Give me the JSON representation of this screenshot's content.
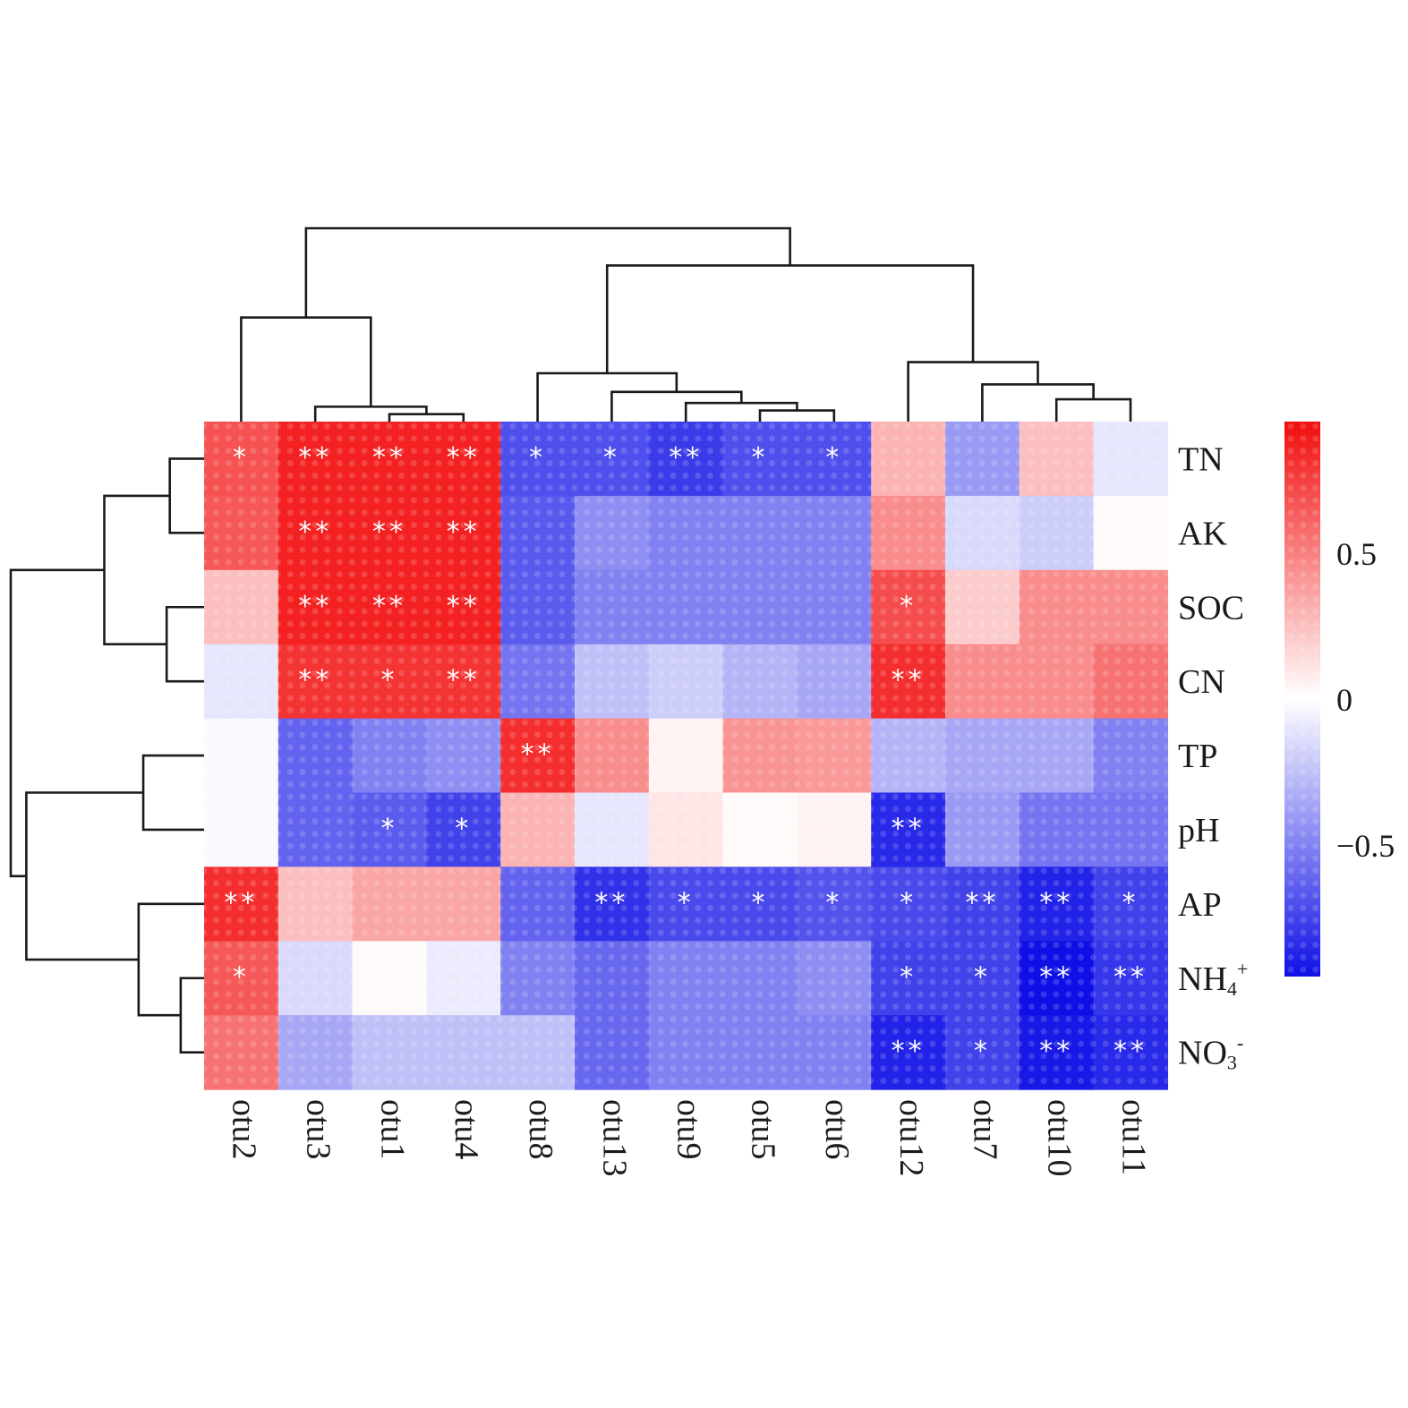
{
  "chart_data": {
    "type": "heatmap",
    "title": "",
    "xlabel": "",
    "ylabel": "",
    "columns": [
      "otu2",
      "otu3",
      "otu1",
      "otu4",
      "otu8",
      "otu13",
      "otu9",
      "otu5",
      "otu6",
      "otu12",
      "otu7",
      "otu10",
      "otu11"
    ],
    "rows": [
      "TN",
      "AK",
      "SOC",
      "CN",
      "TP",
      "pH",
      "AP",
      "NH4+",
      "NO3-"
    ],
    "row_labels": [
      {
        "main": "TN",
        "sub": "",
        "sup": ""
      },
      {
        "main": "AK",
        "sub": "",
        "sup": ""
      },
      {
        "main": "SOC",
        "sub": "",
        "sup": ""
      },
      {
        "main": "CN",
        "sub": "",
        "sup": ""
      },
      {
        "main": "TP",
        "sub": "",
        "sup": ""
      },
      {
        "main": "pH",
        "sub": "",
        "sup": ""
      },
      {
        "main": "AP",
        "sub": "",
        "sup": ""
      },
      {
        "main": "NH",
        "sub": "4",
        "sup": "+"
      },
      {
        "main": "NO",
        "sub": "3",
        "sup": "-"
      }
    ],
    "values": [
      [
        0.68,
        0.87,
        0.87,
        0.87,
        -0.7,
        -0.7,
        -0.78,
        -0.7,
        -0.7,
        0.3,
        -0.4,
        0.25,
        -0.1
      ],
      [
        0.66,
        0.87,
        0.87,
        0.87,
        -0.66,
        -0.45,
        -0.5,
        -0.5,
        -0.5,
        0.45,
        -0.15,
        -0.2,
        0.02
      ],
      [
        0.25,
        0.87,
        0.87,
        0.87,
        -0.65,
        -0.5,
        -0.5,
        -0.5,
        -0.5,
        0.7,
        0.2,
        0.45,
        0.45
      ],
      [
        -0.1,
        0.8,
        0.8,
        0.8,
        -0.55,
        -0.25,
        -0.2,
        -0.3,
        -0.35,
        0.82,
        0.45,
        0.45,
        0.55
      ],
      [
        -0.02,
        -0.62,
        -0.5,
        -0.45,
        0.82,
        0.45,
        0.05,
        0.42,
        0.4,
        -0.3,
        -0.35,
        -0.35,
        -0.5
      ],
      [
        -0.02,
        -0.62,
        -0.65,
        -0.75,
        0.3,
        -0.1,
        0.1,
        0.02,
        0.05,
        -0.85,
        -0.4,
        -0.55,
        -0.55
      ],
      [
        0.82,
        0.25,
        0.35,
        0.35,
        -0.62,
        -0.82,
        -0.72,
        -0.72,
        -0.68,
        -0.72,
        -0.75,
        -0.88,
        -0.75
      ],
      [
        0.66,
        -0.15,
        0.02,
        -0.08,
        -0.5,
        -0.6,
        -0.5,
        -0.5,
        -0.45,
        -0.75,
        -0.75,
        -0.95,
        -0.8
      ],
      [
        0.55,
        -0.35,
        -0.25,
        -0.25,
        -0.25,
        -0.6,
        -0.5,
        -0.5,
        -0.5,
        -0.88,
        -0.75,
        -0.92,
        -0.85
      ]
    ],
    "significance": [
      [
        "*",
        "**",
        "**",
        "**",
        "*",
        "*",
        "**",
        "*",
        "*",
        "",
        "",
        "",
        ""
      ],
      [
        "",
        "**",
        "**",
        "**",
        "",
        "",
        "",
        "",
        "",
        "",
        "",
        "",
        ""
      ],
      [
        "",
        "**",
        "**",
        "**",
        "",
        "",
        "",
        "",
        "",
        "*",
        "",
        "",
        ""
      ],
      [
        "",
        "**",
        "*",
        "**",
        "",
        "",
        "",
        "",
        "",
        "**",
        "",
        "",
        ""
      ],
      [
        "",
        "",
        "",
        "",
        "**",
        "",
        "",
        "",
        "",
        "",
        "",
        "",
        ""
      ],
      [
        "",
        "",
        "*",
        "*",
        "",
        "",
        "",
        "",
        "",
        "**",
        "",
        "",
        ""
      ],
      [
        "**",
        "",
        "",
        "",
        "",
        "**",
        "*",
        "*",
        "*",
        "*",
        "**",
        "**",
        "*"
      ],
      [
        "*",
        "",
        "",
        "",
        "",
        "",
        "",
        "",
        "",
        "*",
        "*",
        "**",
        "**"
      ],
      [
        "",
        "",
        "",
        "",
        "",
        "",
        "",
        "",
        "",
        "**",
        "*",
        "**",
        "**"
      ]
    ],
    "color_scale": {
      "min": -0.95,
      "max": 0.95,
      "low_color": "#1010e6",
      "mid_color": "#ffffff",
      "high_color": "#f20d0d",
      "ticks": [
        {
          "value": 0.5,
          "label": "0.5"
        },
        {
          "value": 0,
          "label": "0"
        },
        {
          "value": -0.5,
          "label": "−0.5"
        }
      ]
    },
    "column_dendrogram": {
      "leaf_order": [
        "otu2",
        "otu3",
        "otu1",
        "otu4",
        "otu8",
        "otu13",
        "otu9",
        "otu5",
        "otu6",
        "otu12",
        "otu7",
        "otu10",
        "otu11"
      ],
      "merges": [
        [
          2,
          3,
          0.1
        ],
        [
          1,
          13,
          0.2
        ],
        [
          0,
          14,
          1.4
        ],
        [
          7,
          8,
          0.15
        ],
        [
          6,
          16,
          0.25
        ],
        [
          5,
          17,
          0.4
        ],
        [
          4,
          18,
          0.65
        ],
        [
          11,
          12,
          0.3
        ],
        [
          10,
          20,
          0.5
        ],
        [
          9,
          21,
          0.8
        ],
        [
          19,
          22,
          2.1
        ],
        [
          15,
          23,
          2.6
        ]
      ]
    },
    "row_dendrogram": {
      "leaf_order": [
        "TN",
        "AK",
        "SOC",
        "CN",
        "TP",
        "pH",
        "AP",
        "NH4+",
        "NO3-"
      ],
      "merges": [
        [
          0,
          1,
          1.1
        ],
        [
          2,
          3,
          1.2
        ],
        [
          9,
          10,
          3.2
        ],
        [
          4,
          5,
          1.95
        ],
        [
          7,
          8,
          0.75
        ],
        [
          6,
          13,
          2.1
        ],
        [
          12,
          14,
          5.7
        ],
        [
          11,
          15,
          6.2
        ]
      ]
    }
  }
}
